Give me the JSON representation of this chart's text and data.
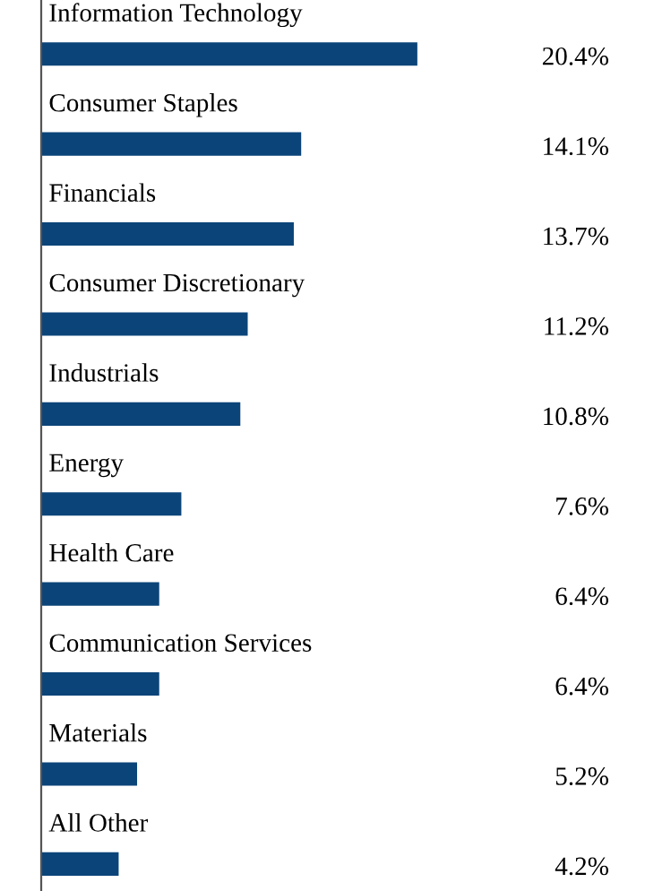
{
  "chart_data": {
    "type": "bar",
    "orientation": "horizontal",
    "categories": [
      "Information Technology",
      "Consumer Staples",
      "Financials",
      "Consumer Discretionary",
      "Industrials",
      "Energy",
      "Health Care",
      "Communication Services",
      "Materials",
      "All Other"
    ],
    "values": [
      20.4,
      14.1,
      13.7,
      11.2,
      10.8,
      7.6,
      6.4,
      6.4,
      5.2,
      4.2
    ],
    "value_labels": [
      "20.4%",
      "14.1%",
      "13.7%",
      "11.2%",
      "10.8%",
      "7.6%",
      "6.4%",
      "6.4%",
      "5.2%",
      "4.2%"
    ],
    "color": "#0b4479"
  }
}
